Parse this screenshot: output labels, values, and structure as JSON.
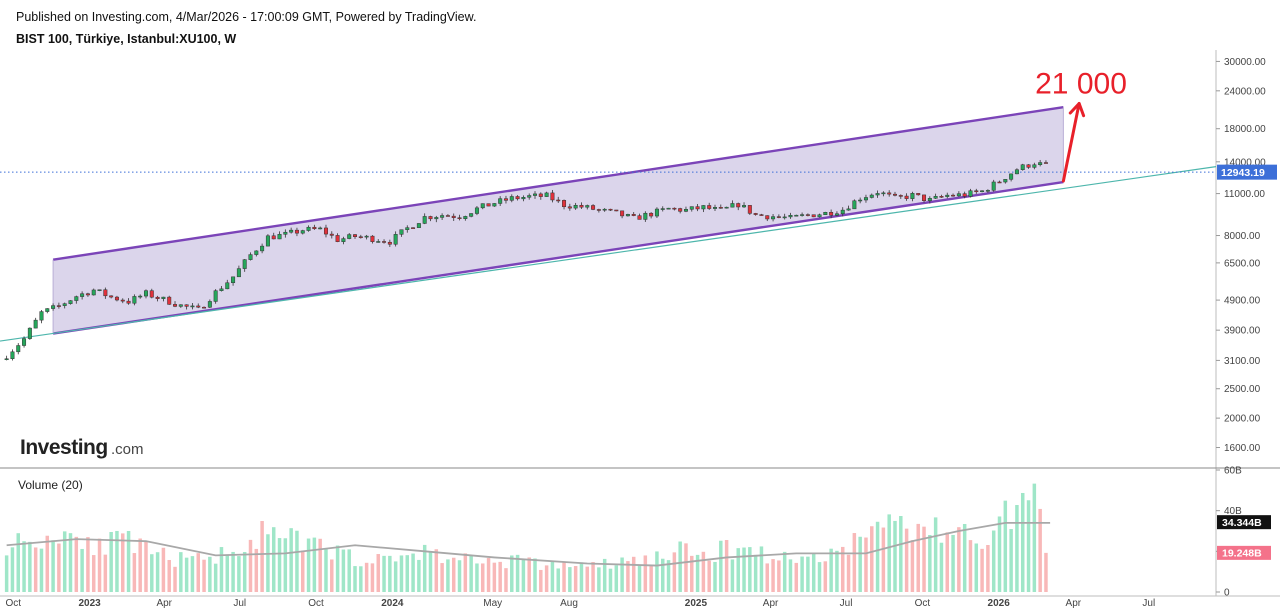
{
  "header": {
    "published": "Published on Investing.com, 4/Mar/2026 - 17:00:09 GMT, Powered by TradingView.",
    "symbol": "BIST 100, Türkiye, Istanbul:XU100, W"
  },
  "logo": {
    "main": "Investing",
    "suffix": ".com"
  },
  "annotation": {
    "target_label": "21 000",
    "color": "#e8202a"
  },
  "colors": {
    "up": "#26a65b",
    "down": "#e0323c",
    "channel_line": "#7b44b8",
    "channel_fill": "#d9d3ea",
    "trend_line": "#4db6ac",
    "price_line": "#3c6fd8",
    "vol_up": "#9fe6c8",
    "vol_down": "#f8b8b8",
    "vol_ma": "#a8a8a8"
  },
  "volume_panel": {
    "title": "Volume (20)",
    "last_ma_label": "34.344B",
    "last_vol_label": "19.248B"
  },
  "chart_data": [
    {
      "type": "candlestick",
      "title": "BIST 100, Türkiye, Istanbul:XU100, W",
      "scale": "log",
      "y_tick_labels": [
        "30000.00",
        "24000.00",
        "18000.00",
        "14000.00",
        "11000.00",
        "8000.00",
        "6500.00",
        "4900.00",
        "3900.00",
        "3100.00",
        "2500.00",
        "2000.00",
        "1600.00"
      ],
      "y_ticks": [
        30000,
        24000,
        18000,
        14000,
        11000,
        8000,
        6500,
        4900,
        3900,
        3100,
        2500,
        2000,
        1600
      ],
      "ylim": [
        1380,
        31500
      ],
      "x_tick_labels": [
        "Oct",
        "2023",
        "Apr",
        "Jul",
        "Oct",
        "2024",
        "May",
        "Aug",
        "2025",
        "Apr",
        "Jul",
        "Oct",
        "2026",
        "Apr",
        "Jul"
      ],
      "x_tick_dates": [
        "2022-10-01",
        "2023-01-01",
        "2023-04-01",
        "2023-07-01",
        "2023-10-01",
        "2024-01-01",
        "2024-05-01",
        "2024-08-01",
        "2025-01-01",
        "2025-04-01",
        "2025-07-01",
        "2025-10-01",
        "2026-01-01",
        "2026-04-01",
        "2026-07-01"
      ],
      "x_range": [
        "2022-09-15",
        "2026-09-20"
      ],
      "last_price": 12943.19,
      "last_price_label": "12943.19",
      "series": [
        {
          "points": [
            [
              "2022-09-23",
              3220
            ],
            [
              "2022-10-14",
              3650
            ],
            [
              "2022-11-04",
              4450
            ],
            [
              "2022-11-25",
              4680
            ],
            [
              "2022-12-16",
              5050
            ],
            [
              "2023-01-06",
              5290
            ],
            [
              "2023-01-27",
              5010
            ],
            [
              "2023-02-17",
              4850
            ],
            [
              "2023-03-10",
              5150
            ],
            [
              "2023-03-31",
              4920
            ],
            [
              "2023-04-21",
              4700
            ],
            [
              "2023-05-12",
              4550
            ],
            [
              "2023-06-02",
              5200
            ],
            [
              "2023-06-23",
              5850
            ],
            [
              "2023-07-14",
              6900
            ],
            [
              "2023-08-04",
              7900
            ],
            [
              "2023-08-25",
              8050
            ],
            [
              "2023-09-15",
              8350
            ],
            [
              "2023-10-06",
              8380
            ],
            [
              "2023-10-27",
              7750
            ],
            [
              "2023-11-17",
              7950
            ],
            [
              "2023-12-08",
              7820
            ],
            [
              "2023-12-29",
              7650
            ],
            [
              "2024-01-19",
              8450
            ],
            [
              "2024-02-09",
              9200
            ],
            [
              "2024-03-01",
              9350
            ],
            [
              "2024-03-22",
              9250
            ],
            [
              "2024-04-12",
              9800
            ],
            [
              "2024-05-03",
              10250
            ],
            [
              "2024-05-24",
              10600
            ],
            [
              "2024-06-14",
              10750
            ],
            [
              "2024-07-05",
              10800
            ],
            [
              "2024-07-26",
              10100
            ],
            [
              "2024-08-16",
              9950
            ],
            [
              "2024-09-06",
              9700
            ],
            [
              "2024-09-27",
              9450
            ],
            [
              "2024-10-18",
              9100
            ],
            [
              "2024-11-08",
              9450
            ],
            [
              "2024-11-29",
              9800
            ],
            [
              "2024-12-20",
              9700
            ],
            [
              "2025-01-10",
              9900
            ],
            [
              "2025-01-31",
              9650
            ],
            [
              "2025-02-21",
              10150
            ],
            [
              "2025-03-14",
              9350
            ],
            [
              "2025-04-04",
              9250
            ],
            [
              "2025-04-25",
              9120
            ],
            [
              "2025-05-16",
              9350
            ],
            [
              "2025-06-06",
              9480
            ],
            [
              "2025-06-27",
              9750
            ],
            [
              "2025-07-18",
              10650
            ],
            [
              "2025-08-08",
              11150
            ],
            [
              "2025-08-29",
              10600
            ],
            [
              "2025-09-19",
              10850
            ],
            [
              "2025-10-10",
              10450
            ],
            [
              "2025-10-31",
              10850
            ],
            [
              "2025-11-21",
              10900
            ],
            [
              "2025-12-12",
              11200
            ],
            [
              "2026-01-02",
              12100
            ],
            [
              "2026-01-23",
              13250
            ],
            [
              "2026-02-13",
              13900
            ],
            [
              "2026-02-27",
              13600
            ],
            [
              "2026-03-04",
              12943
            ]
          ]
        }
      ],
      "channel": {
        "upper": [
          [
            "2022-11-18",
            6660
          ],
          [
            "2026-03-20",
            21200
          ]
        ],
        "lower": [
          [
            "2022-11-18",
            3800
          ],
          [
            "2026-03-20",
            12000
          ]
        ]
      },
      "trend_line": [
        [
          "2022-09-15",
          3590
        ],
        [
          "2026-09-20",
          13500
        ]
      ],
      "target_arrow": [
        [
          "2026-03-20",
          12100
        ],
        [
          "2026-04-08",
          21800
        ]
      ],
      "target_value": 21000
    },
    {
      "type": "bar",
      "title": "Volume (20)",
      "y_tick_labels": [
        "60B",
        "40B",
        "20B",
        "0"
      ],
      "y_ticks": [
        60,
        40,
        20,
        0
      ],
      "ylim": [
        0,
        60
      ],
      "unit": "B",
      "last_volume": 19.248,
      "last_ma": 34.344,
      "series": [
        {
          "values": [
            [
              "2022-09-23",
              24,
              1
            ],
            [
              "2022-10-21",
              25,
              1
            ],
            [
              "2022-11-18",
              27,
              1
            ],
            [
              "2022-12-16",
              30,
              1
            ],
            [
              "2023-01-13",
              22,
              0
            ],
            [
              "2023-02-10",
              26,
              1
            ],
            [
              "2023-03-10",
              20,
              0
            ],
            [
              "2023-04-07",
              17,
              0
            ],
            [
              "2023-05-05",
              15,
              1
            ],
            [
              "2023-06-02",
              18,
              1
            ],
            [
              "2023-06-30",
              22,
              1
            ],
            [
              "2023-07-28",
              28,
              1
            ],
            [
              "2023-08-25",
              26,
              1
            ],
            [
              "2023-09-22",
              24,
              1
            ],
            [
              "2023-10-20",
              20,
              0
            ],
            [
              "2023-11-17",
              17,
              1
            ],
            [
              "2023-12-15",
              15,
              0
            ],
            [
              "2024-01-12",
              18,
              1
            ],
            [
              "2024-02-09",
              20,
              1
            ],
            [
              "2024-03-08",
              17,
              0
            ],
            [
              "2024-04-05",
              16,
              1
            ],
            [
              "2024-05-03",
              15,
              0
            ],
            [
              "2024-05-31",
              16,
              1
            ],
            [
              "2024-06-28",
              13,
              0
            ],
            [
              "2024-07-26",
              14,
              1
            ],
            [
              "2024-08-23",
              12,
              0
            ],
            [
              "2024-09-20",
              14,
              1
            ],
            [
              "2024-10-18",
              15,
              0
            ],
            [
              "2024-11-15",
              17,
              1
            ],
            [
              "2024-12-13",
              20,
              1
            ],
            [
              "2025-01-10",
              18,
              1
            ],
            [
              "2025-02-07",
              21,
              1
            ],
            [
              "2025-03-07",
              22,
              1
            ],
            [
              "2025-04-04",
              17,
              0
            ],
            [
              "2025-05-02",
              16,
              1
            ],
            [
              "2025-05-30",
              18,
              1
            ],
            [
              "2025-06-27",
              21,
              1
            ],
            [
              "2025-07-25",
              28,
              1
            ],
            [
              "2025-08-22",
              36,
              1
            ],
            [
              "2025-09-19",
              32,
              0
            ],
            [
              "2025-10-17",
              30,
              1
            ],
            [
              "2025-11-14",
              29,
              1
            ],
            [
              "2025-12-12",
              27,
              1
            ],
            [
              "2026-01-09",
              37,
              1
            ],
            [
              "2026-02-06",
              47,
              1
            ],
            [
              "2026-02-27",
              42,
              0
            ],
            [
              "2026-03-04",
              19,
              0
            ]
          ],
          "ma": [
            [
              "2022-09-23",
              23
            ],
            [
              "2022-12-16",
              26
            ],
            [
              "2023-03-10",
              25
            ],
            [
              "2023-06-02",
              18
            ],
            [
              "2023-08-25",
              19
            ],
            [
              "2023-11-17",
              23
            ],
            [
              "2024-02-09",
              20
            ],
            [
              "2024-05-03",
              17
            ],
            [
              "2024-08-23",
              14
            ],
            [
              "2024-11-15",
              13
            ],
            [
              "2025-02-07",
              17
            ],
            [
              "2025-05-02",
              19
            ],
            [
              "2025-07-25",
              19
            ],
            [
              "2025-09-19",
              25
            ],
            [
              "2025-11-14",
              30
            ],
            [
              "2026-01-09",
              34
            ],
            [
              "2026-02-06",
              34
            ],
            [
              "2026-03-04",
              34
            ]
          ]
        }
      ]
    }
  ]
}
